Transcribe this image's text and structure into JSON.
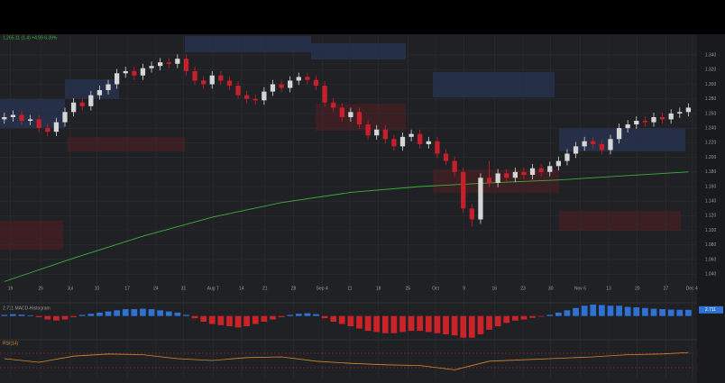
{
  "chart_data": [
    {
      "type": "candlestick",
      "title": "1,265.11 (1.4) +4.99 6.39%",
      "up_color": "#d6d6d6",
      "down_color": "#c8202a",
      "open": [
        1.252,
        1.255,
        1.258,
        1.25,
        1.252,
        1.24,
        1.235,
        1.248,
        1.262,
        1.275,
        1.27,
        1.285,
        1.292,
        1.3,
        1.315,
        1.318,
        1.312,
        1.322,
        1.325,
        1.33,
        1.328,
        1.335,
        1.318,
        1.305,
        1.3,
        1.312,
        1.305,
        1.298,
        1.285,
        1.28,
        1.278,
        1.29,
        1.3,
        1.295,
        1.305,
        1.31,
        1.306,
        1.298,
        1.275,
        1.268,
        1.255,
        1.262,
        1.245,
        1.23,
        1.238,
        1.225,
        1.215,
        1.228,
        1.232,
        1.218,
        1.222,
        1.205,
        1.195,
        1.18,
        1.13,
        1.115,
        1.172,
        1.165,
        1.178,
        1.172,
        1.18,
        1.176,
        1.185,
        1.18,
        1.188,
        1.195,
        1.205,
        1.215,
        1.222,
        1.218,
        1.21,
        1.225,
        1.24,
        1.245,
        1.25,
        1.248,
        1.255,
        1.252,
        1.26,
        1.262
      ],
      "high": [
        1.261,
        1.264,
        1.264,
        1.258,
        1.258,
        1.246,
        1.254,
        1.268,
        1.281,
        1.281,
        1.291,
        1.298,
        1.306,
        1.321,
        1.324,
        1.324,
        1.328,
        1.331,
        1.336,
        1.336,
        1.341,
        1.341,
        1.324,
        1.311,
        1.318,
        1.318,
        1.311,
        1.304,
        1.291,
        1.286,
        1.296,
        1.306,
        1.306,
        1.311,
        1.316,
        1.316,
        1.312,
        1.304,
        1.281,
        1.274,
        1.268,
        1.268,
        1.251,
        1.244,
        1.244,
        1.231,
        1.234,
        1.238,
        1.238,
        1.228,
        1.228,
        1.211,
        1.201,
        1.186,
        1.136,
        1.178,
        1.195,
        1.184,
        1.184,
        1.186,
        1.186,
        1.191,
        1.191,
        1.194,
        1.201,
        1.211,
        1.221,
        1.228,
        1.228,
        1.224,
        1.231,
        1.246,
        1.251,
        1.256,
        1.256,
        1.261,
        1.261,
        1.266,
        1.268,
        1.274
      ],
      "low": [
        1.246,
        1.249,
        1.244,
        1.244,
        1.234,
        1.229,
        1.229,
        1.242,
        1.256,
        1.264,
        1.264,
        1.279,
        1.286,
        1.294,
        1.309,
        1.306,
        1.306,
        1.316,
        1.319,
        1.322,
        1.322,
        1.312,
        1.299,
        1.294,
        1.294,
        1.299,
        1.292,
        1.279,
        1.274,
        1.272,
        1.272,
        1.284,
        1.289,
        1.289,
        1.299,
        1.3,
        1.292,
        1.269,
        1.262,
        1.249,
        1.249,
        1.239,
        1.224,
        1.224,
        1.219,
        1.209,
        1.209,
        1.222,
        1.212,
        1.212,
        1.199,
        1.189,
        1.174,
        1.124,
        1.105,
        1.109,
        1.159,
        1.159,
        1.166,
        1.166,
        1.17,
        1.17,
        1.174,
        1.174,
        1.182,
        1.189,
        1.199,
        1.209,
        1.212,
        1.204,
        1.204,
        1.219,
        1.234,
        1.239,
        1.242,
        1.242,
        1.246,
        1.246,
        1.254,
        1.256
      ],
      "close": [
        1.255,
        1.258,
        1.25,
        1.252,
        1.24,
        1.235,
        1.248,
        1.262,
        1.275,
        1.27,
        1.285,
        1.292,
        1.3,
        1.315,
        1.318,
        1.312,
        1.322,
        1.325,
        1.33,
        1.328,
        1.335,
        1.318,
        1.305,
        1.3,
        1.312,
        1.305,
        1.298,
        1.285,
        1.28,
        1.278,
        1.29,
        1.3,
        1.295,
        1.305,
        1.31,
        1.306,
        1.298,
        1.275,
        1.268,
        1.255,
        1.262,
        1.245,
        1.23,
        1.238,
        1.225,
        1.215,
        1.228,
        1.232,
        1.218,
        1.222,
        1.205,
        1.195,
        1.18,
        1.13,
        1.115,
        1.172,
        1.165,
        1.178,
        1.172,
        1.18,
        1.176,
        1.185,
        1.18,
        1.188,
        1.195,
        1.205,
        1.215,
        1.222,
        1.218,
        1.21,
        1.225,
        1.24,
        1.245,
        1.25,
        1.248,
        1.255,
        1.252,
        1.26,
        1.262,
        1.268
      ],
      "overlays": [
        {
          "color": "#3fae3a",
          "x": [
            0,
            8,
            16,
            24,
            32,
            40,
            48,
            56,
            64,
            72,
            79
          ],
          "values": [
            1.03,
            1.062,
            1.092,
            1.118,
            1.138,
            1.152,
            1.16,
            1.165,
            1.169,
            1.175,
            1.18
          ]
        }
      ],
      "xlim": [
        -0.5,
        80
      ],
      "xticks": [
        {
          "value": 0.7,
          "label": "19"
        },
        {
          "value": 4.2,
          "label": "26"
        },
        {
          "value": 7.6,
          "label": "Jul"
        },
        {
          "value": 10.7,
          "label": "10"
        },
        {
          "value": 14.2,
          "label": "17"
        },
        {
          "value": 17.5,
          "label": "24"
        },
        {
          "value": 20.7,
          "label": "31"
        },
        {
          "value": 24.1,
          "label": "Aug 7"
        },
        {
          "value": 27.4,
          "label": "14"
        },
        {
          "value": 30.1,
          "label": "21"
        },
        {
          "value": 33.4,
          "label": "28"
        },
        {
          "value": 36.7,
          "label": "Sep 4"
        },
        {
          "value": 39.9,
          "label": "11"
        },
        {
          "value": 43.2,
          "label": "18"
        },
        {
          "value": 46.6,
          "label": "25"
        },
        {
          "value": 49.8,
          "label": "Oct"
        },
        {
          "value": 53.1,
          "label": "9"
        },
        {
          "value": 56.6,
          "label": "16"
        },
        {
          "value": 59.9,
          "label": "23"
        },
        {
          "value": 63.1,
          "label": "30"
        },
        {
          "value": 66.5,
          "label": "Nov 6"
        },
        {
          "value": 69.8,
          "label": "13"
        },
        {
          "value": 73.1,
          "label": "20"
        },
        {
          "value": 76.4,
          "label": "27"
        },
        {
          "value": 79.4,
          "label": "Dec 4"
        }
      ],
      "ylim": [
        1.028,
        1.366
      ],
      "yticks": [
        {
          "value": 1.34,
          "label": "1.340"
        },
        {
          "value": 1.32,
          "label": "1.320"
        },
        {
          "value": 1.3,
          "label": "1.300"
        },
        {
          "value": 1.28,
          "label": "1.280"
        },
        {
          "value": 1.26,
          "label": "1.260"
        },
        {
          "value": 1.24,
          "label": "1.240"
        },
        {
          "value": 1.22,
          "label": "1.220"
        },
        {
          "value": 1.2,
          "label": "1.200"
        },
        {
          "value": 1.18,
          "label": "1.180"
        },
        {
          "value": 1.16,
          "label": "1.160"
        },
        {
          "value": 1.14,
          "label": "1.140"
        },
        {
          "value": 1.12,
          "label": "1.120"
        },
        {
          "value": 1.1,
          "label": "1.100"
        },
        {
          "value": 1.08,
          "label": "1.080"
        },
        {
          "value": 1.06,
          "label": "1.060"
        },
        {
          "value": 1.04,
          "label": "1.040"
        }
      ],
      "grid": true
    },
    {
      "type": "bar",
      "title": "2.711 MACD-Histogram",
      "last_label": "2.711",
      "pos_color": "#2f72d6",
      "neg_color": "#cc2329",
      "values": [
        0.5,
        0.8,
        0.6,
        0.3,
        -0.5,
        -1.5,
        -2,
        -1.5,
        -0.5,
        0.5,
        1,
        1.5,
        2,
        2.5,
        3,
        3,
        3.2,
        3,
        2.5,
        2,
        1.5,
        0.5,
        -1,
        -2.5,
        -3.5,
        -4,
        -4.5,
        -5,
        -4.5,
        -3.5,
        -2.5,
        -1.5,
        -0.5,
        0.5,
        1,
        1.2,
        0.8,
        -1,
        -2.5,
        -3.5,
        -4.5,
        -5.5,
        -6.5,
        -7,
        -7.5,
        -7.5,
        -7,
        -6.5,
        -6.5,
        -7,
        -7.5,
        -8,
        -8.5,
        -9.5,
        -9.5,
        -8,
        -6,
        -4.5,
        -3,
        -2,
        -1.5,
        -0.8,
        -0.3,
        0.5,
        1.5,
        2.5,
        3.5,
        4.5,
        5,
        4.8,
        4.5,
        4.5,
        4,
        3.8,
        3.5,
        3.2,
        3,
        2.8,
        2.7,
        2.7
      ],
      "xlim": [
        -0.5,
        80
      ],
      "ylim": [
        -10,
        5
      ]
    },
    {
      "type": "line",
      "title": "RSI(14)",
      "color": "#d9892b",
      "level_color": "#c8202a",
      "x": [
        0,
        4,
        8,
        12,
        16,
        20,
        24,
        28,
        32,
        36,
        40,
        44,
        48,
        52,
        56,
        60,
        64,
        68,
        72,
        76,
        79
      ],
      "values": [
        55,
        45,
        62,
        68,
        66,
        55,
        50,
        58,
        60,
        48,
        42,
        38,
        36,
        24,
        48,
        52,
        56,
        60,
        66,
        68,
        72
      ],
      "levels": [
        70,
        30
      ],
      "xlim": [
        -0.5,
        80
      ],
      "ylim": [
        0,
        100
      ]
    }
  ]
}
